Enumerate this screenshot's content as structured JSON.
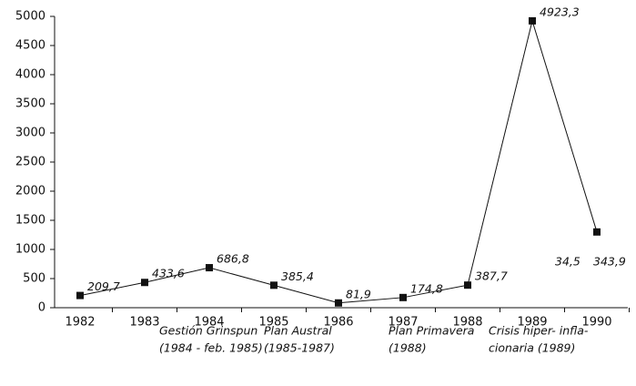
{
  "chart_data": {
    "type": "line",
    "categories": [
      "1982",
      "1983",
      "1984",
      "1985",
      "1986",
      "1987",
      "1988",
      "1989",
      "1990"
    ],
    "values": [
      209.7,
      433.6,
      686.8,
      385.4,
      81.9,
      174.8,
      387.7,
      4923.3,
      1300
    ],
    "value_labels": [
      "209,7",
      "433,6",
      "686,8",
      "385,4",
      "81,9",
      "174,8",
      "387,7",
      "4923,3",
      null
    ],
    "annotations": [
      "34,5",
      "343,9"
    ],
    "periods": [
      {
        "lines": [
          "Gestión Grinspun",
          "(1984 - feb. 1985)"
        ]
      },
      {
        "lines": [
          "Plan Austral",
          "(1985-1987)"
        ]
      },
      {
        "lines": [
          "Plan Primavera",
          "(1988)"
        ]
      },
      {
        "lines": [
          "Crisis hiper- infla-",
          "cionaria (1989)"
        ]
      }
    ],
    "color": "#111111",
    "ylim": [
      0,
      5000
    ],
    "yticks": [
      0,
      500,
      1000,
      1500,
      2000,
      2500,
      3000,
      3500,
      4000,
      4500,
      5000
    ]
  }
}
